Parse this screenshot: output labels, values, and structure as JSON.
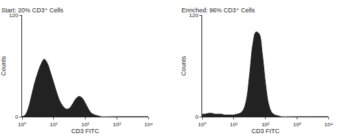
{
  "chart_data": [
    {
      "type": "area",
      "title": "Start: 20% CD3⁺ Cells",
      "x_label": "CD3 FITC",
      "y_label": "Counts",
      "x": [
        1,
        1.26,
        1.58,
        2,
        2.51,
        3.16,
        3.98,
        5.01,
        6.31,
        7.94,
        10,
        12.6,
        15.8,
        20,
        25.1,
        31.6,
        39.8,
        50.1,
        63.1,
        79.4,
        100,
        126,
        158,
        200,
        251,
        316,
        1000,
        10000
      ],
      "values": [
        0,
        2,
        10,
        25,
        40,
        52,
        62,
        68,
        63,
        52,
        40,
        28,
        18,
        12,
        9,
        10,
        15,
        21,
        24,
        22,
        16,
        9,
        4,
        2,
        1,
        0,
        0,
        0
      ],
      "xlim": [
        1,
        10000
      ],
      "ylim": [
        0,
        120
      ],
      "xticks": [
        {
          "value": 1,
          "label": "10⁰"
        },
        {
          "value": 10,
          "label": "10¹"
        },
        {
          "value": 100,
          "label": "10²"
        },
        {
          "value": 1000,
          "label": "10³"
        },
        {
          "value": 10000,
          "label": "10⁴"
        }
      ],
      "yticks": [
        0,
        120
      ],
      "log": "x",
      "color": "#222222"
    },
    {
      "type": "area",
      "title": "Enriched: 96% CD3⁺ Cells",
      "x_label": "CD3 FITC",
      "y_label": "Counts",
      "x": [
        1,
        1.26,
        1.58,
        2,
        2.51,
        3.16,
        3.98,
        5.01,
        6.31,
        7.94,
        10,
        12.6,
        15.8,
        20,
        25.1,
        31.6,
        39.8,
        50.1,
        63.1,
        79.4,
        100,
        126,
        158,
        200,
        251,
        316,
        1000,
        10000
      ],
      "values": [
        3,
        3,
        4,
        4,
        3,
        3,
        3,
        2,
        2,
        2,
        2,
        3,
        4,
        8,
        20,
        50,
        85,
        100,
        98,
        75,
        40,
        15,
        5,
        2,
        1,
        0,
        0,
        0
      ],
      "xlim": [
        1,
        10000
      ],
      "ylim": [
        0,
        120
      ],
      "xticks": [
        {
          "value": 1,
          "label": "10⁰"
        },
        {
          "value": 10,
          "label": "10¹"
        },
        {
          "value": 100,
          "label": "10²"
        },
        {
          "value": 1000,
          "label": "10³"
        },
        {
          "value": 10000,
          "label": "10⁴"
        }
      ],
      "yticks": [
        0,
        120
      ],
      "log": "x",
      "color": "#222222"
    }
  ]
}
